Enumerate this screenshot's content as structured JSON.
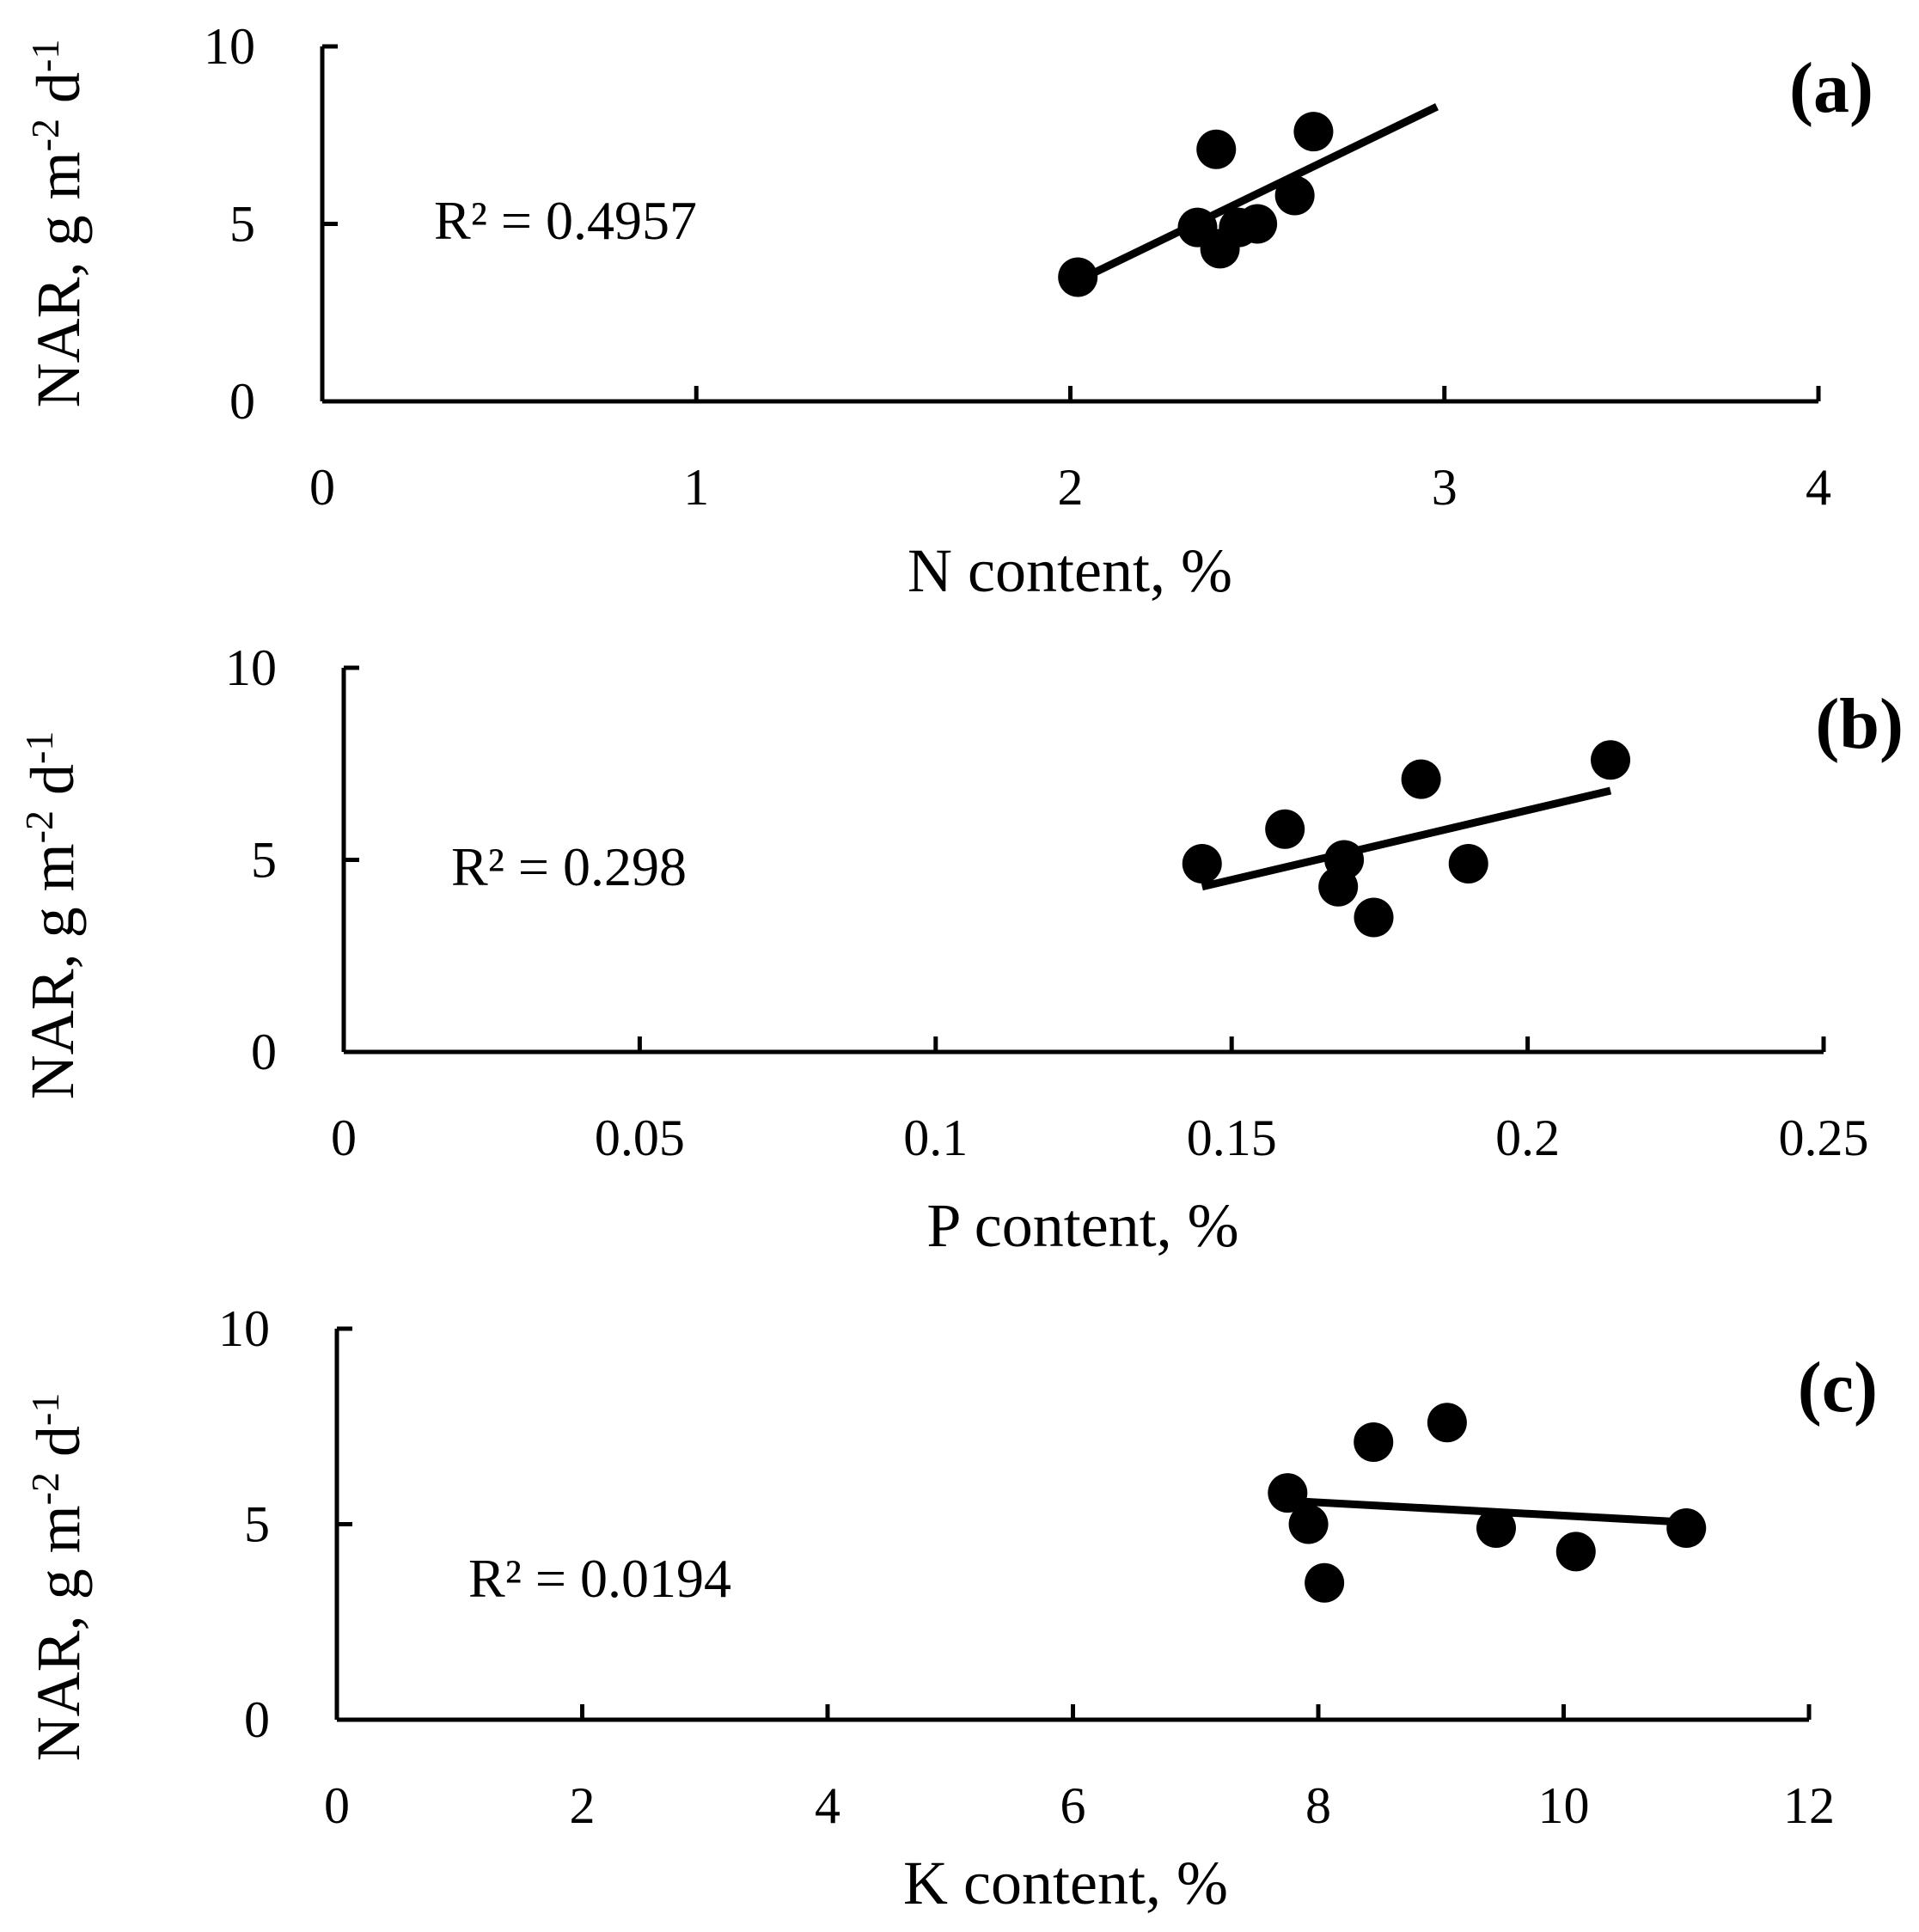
{
  "colors": {
    "ink": "#000000",
    "background": "#ffffff"
  },
  "chart_data": [
    {
      "type": "scatter",
      "panel_label": "(a)",
      "xlabel": "N content, %",
      "ylabel": "NAR, g m-2 d-1",
      "ylabel_parts": {
        "main": "NAR, g m",
        "exp1": "-2",
        "mid": " d",
        "exp2": "-1"
      },
      "xlim": [
        0,
        4
      ],
      "ylim": [
        0,
        10
      ],
      "xticks": [
        0,
        1,
        2,
        3,
        4
      ],
      "xtick_labels": [
        "0",
        "1",
        "2",
        "3",
        "4"
      ],
      "yticks": [
        0,
        5,
        10
      ],
      "ytick_labels": [
        "0",
        "5",
        "10"
      ],
      "points": [
        {
          "x": 2.02,
          "y": 3.5
        },
        {
          "x": 2.34,
          "y": 4.9
        },
        {
          "x": 2.39,
          "y": 7.1
        },
        {
          "x": 2.4,
          "y": 4.3
        },
        {
          "x": 2.45,
          "y": 4.9
        },
        {
          "x": 2.5,
          "y": 5.0
        },
        {
          "x": 2.6,
          "y": 5.8
        },
        {
          "x": 2.65,
          "y": 7.6
        }
      ],
      "trendline": {
        "x": [
          2.02,
          2.98
        ],
        "y": [
          3.4,
          8.3
        ]
      },
      "annotation": "R² = 0.4957"
    },
    {
      "type": "scatter",
      "panel_label": "(b)",
      "xlabel": "P content, %",
      "ylabel": "NAR, g m-2 d-1",
      "ylabel_parts": {
        "main": "NAR, g m",
        "exp1": "-2",
        "mid": " d",
        "exp2": "-1"
      },
      "xlim": [
        0,
        0.25
      ],
      "ylim": [
        0,
        10
      ],
      "xticks": [
        0,
        0.05,
        0.1,
        0.15,
        0.2,
        0.25
      ],
      "xtick_labels": [
        "0",
        "0.05",
        "0.1",
        "0.15",
        "0.2",
        "0.25"
      ],
      "yticks": [
        0,
        5,
        10
      ],
      "ytick_labels": [
        "0",
        "5",
        "10"
      ],
      "points": [
        {
          "x": 0.145,
          "y": 4.9
        },
        {
          "x": 0.159,
          "y": 5.8
        },
        {
          "x": 0.168,
          "y": 4.3
        },
        {
          "x": 0.169,
          "y": 5.0
        },
        {
          "x": 0.174,
          "y": 3.5
        },
        {
          "x": 0.182,
          "y": 7.1
        },
        {
          "x": 0.19,
          "y": 4.9
        },
        {
          "x": 0.214,
          "y": 7.6
        }
      ],
      "trendline": {
        "x": [
          0.145,
          0.214
        ],
        "y": [
          4.3,
          6.8
        ]
      },
      "annotation": "R² = 0.298"
    },
    {
      "type": "scatter",
      "panel_label": "(c)",
      "xlabel": "K content, %",
      "ylabel": "NAR, g m-2 d-1",
      "ylabel_parts": {
        "main": "NAR, g m",
        "exp1": "-2",
        "mid": " d",
        "exp2": "-1"
      },
      "xlim": [
        0,
        12
      ],
      "ylim": [
        0,
        10
      ],
      "xticks": [
        0,
        2,
        4,
        6,
        8,
        10,
        12
      ],
      "xtick_labels": [
        "0",
        "2",
        "4",
        "6",
        "8",
        "10",
        "12"
      ],
      "yticks": [
        0,
        5,
        10
      ],
      "ytick_labels": [
        "0",
        "5",
        "10"
      ],
      "points": [
        {
          "x": 7.75,
          "y": 5.8
        },
        {
          "x": 7.92,
          "y": 5.0
        },
        {
          "x": 8.05,
          "y": 3.5
        },
        {
          "x": 8.45,
          "y": 7.1
        },
        {
          "x": 9.05,
          "y": 7.6
        },
        {
          "x": 9.45,
          "y": 4.9
        },
        {
          "x": 10.1,
          "y": 4.3
        },
        {
          "x": 11.0,
          "y": 4.9
        }
      ],
      "trendline": {
        "x": [
          7.75,
          11.0
        ],
        "y": [
          5.6,
          5.05
        ]
      },
      "annotation": "R² = 0.0194"
    }
  ]
}
